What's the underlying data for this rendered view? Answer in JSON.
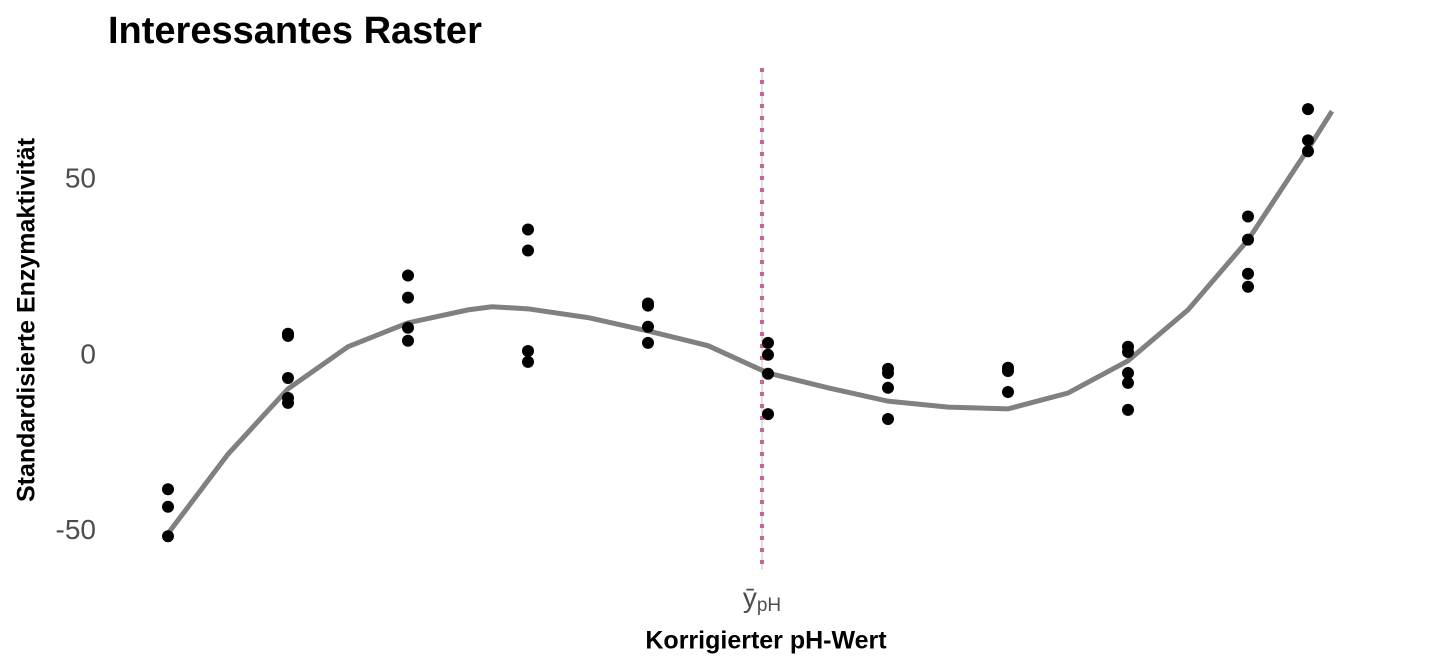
{
  "chart_data": {
    "type": "scatter",
    "title": "Interessantes Raster",
    "x_label": "Korrigierter pH-Wert",
    "y_label": "Standardisierte Enzymaktivität",
    "xlim": [
      -0.5,
      9.85
    ],
    "ylim": [
      -61,
      82
    ],
    "yticks": [
      -50,
      0,
      50
    ],
    "xticks": [
      {
        "value": 4.95,
        "label": "ȳ",
        "subscript": "pH"
      }
    ],
    "grid": "x",
    "points": {
      "color": "#000000",
      "x": [
        0,
        0,
        0,
        1,
        1,
        1,
        1,
        1,
        2,
        2,
        2,
        2,
        3,
        3,
        3,
        3,
        4,
        4,
        4,
        4,
        5,
        5,
        5,
        5,
        6,
        6,
        6,
        6,
        7,
        7,
        7,
        8,
        8,
        8,
        8,
        8,
        9,
        9,
        9,
        9,
        9.5,
        9.5,
        9.5
      ],
      "y": [
        -38,
        -43,
        -51.4,
        6.3,
        5.7,
        -6.3,
        -12,
        -13.4,
        22.9,
        16.6,
        8,
        4.3,
        36,
        30,
        1.4,
        -1.7,
        14.9,
        14.3,
        8.3,
        3.7,
        3.7,
        0.3,
        -5.1,
        -16.6,
        -3.7,
        -4.9,
        -9.1,
        -18,
        -3.4,
        -4.3,
        -10.3,
        2.6,
        1.1,
        -4.9,
        -7.7,
        -15.4,
        39.7,
        33.1,
        23.4,
        19.7,
        70.3,
        61.4,
        58.3
      ]
    },
    "fit": {
      "color": "#808080",
      "x": [
        0,
        0.5,
        1,
        1.5,
        2,
        2.5,
        2.7,
        3,
        3.5,
        4,
        4.5,
        5,
        5.5,
        6,
        6.5,
        7,
        7.5,
        8,
        8.5,
        9,
        9.5,
        9.7
      ],
      "y": [
        -50.6,
        -28,
        -9.4,
        2.6,
        9.4,
        13.1,
        14,
        13.4,
        10.9,
        7.1,
        2.9,
        -4.9,
        -9.1,
        -12.9,
        -14.6,
        -15.1,
        -10.6,
        -1.4,
        13.1,
        33,
        58.9,
        69.7
      ]
    },
    "vline": {
      "x": 4.95,
      "color": "#c2679a"
    }
  }
}
